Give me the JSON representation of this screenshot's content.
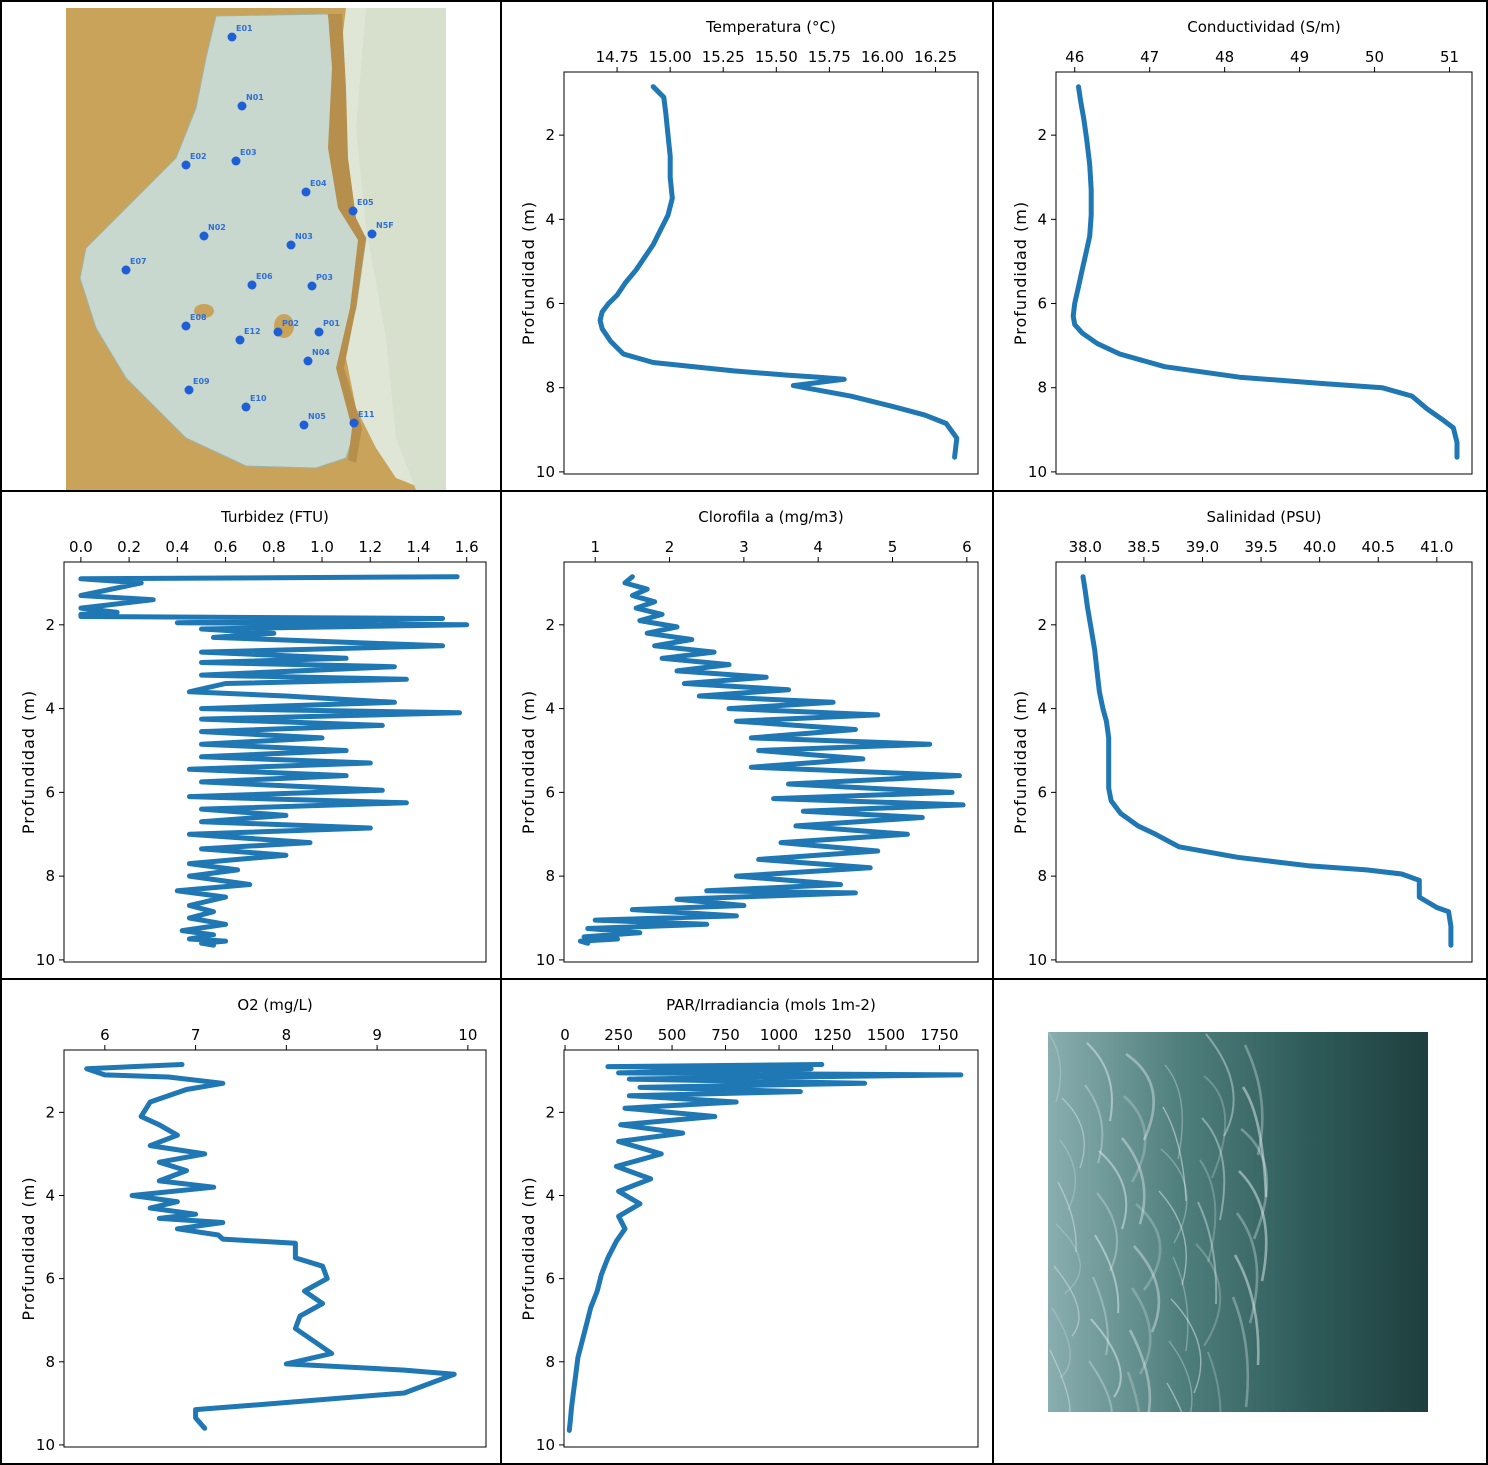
{
  "map_panel": {
    "stations": [
      "E01",
      "N01",
      "E02",
      "E03",
      "E04",
      "E05",
      "N5F",
      "N02",
      "N03",
      "E07",
      "E06",
      "P03",
      "E08",
      "E12",
      "P02",
      "P01",
      "N04",
      "E09",
      "E10",
      "N05",
      "E11"
    ]
  },
  "photo_panel": {},
  "colors": {
    "line": "#1f77b4",
    "station": "#1f5fd6",
    "land": "#c9a35a",
    "water": "#c9d8cf",
    "sea": "#dfe6d6"
  },
  "chart_data": [
    {
      "type": "line",
      "title": "Temperatura (°C)",
      "ylabel": "Profundidad (m)",
      "xlim": [
        14.5,
        16.45
      ],
      "xticks": [
        "14.75",
        "15.00",
        "15.25",
        "15.50",
        "15.75",
        "16.00",
        "16.25"
      ],
      "xtick_values": [
        14.75,
        15.0,
        15.25,
        15.5,
        15.75,
        16.0,
        16.25
      ],
      "ylim": [
        10.05,
        0.5
      ],
      "yticks": [
        "2",
        "4",
        "6",
        "8",
        "10"
      ],
      "ytick_values": [
        2,
        4,
        6,
        8,
        10
      ],
      "series": [
        {
          "x": [
            14.92,
            14.97,
            14.98,
            14.99,
            15.0,
            15.0,
            15.01,
            14.99,
            14.97,
            14.95,
            14.92,
            14.88,
            14.84,
            14.79,
            14.75,
            14.71,
            14.68,
            14.67,
            14.68,
            14.72,
            14.78,
            14.92,
            15.3,
            15.55,
            15.7,
            15.82,
            15.58,
            15.85,
            16.05,
            16.2,
            16.3,
            16.35,
            16.34
          ],
          "y": [
            0.85,
            1.1,
            1.5,
            2.0,
            2.5,
            3.0,
            3.5,
            3.9,
            4.1,
            4.3,
            4.6,
            4.9,
            5.2,
            5.5,
            5.8,
            6.0,
            6.2,
            6.4,
            6.6,
            6.9,
            7.2,
            7.4,
            7.6,
            7.7,
            7.75,
            7.8,
            7.95,
            8.2,
            8.45,
            8.65,
            8.85,
            9.2,
            9.65
          ]
        }
      ]
    },
    {
      "type": "line",
      "title": "Conductividad (S/m)",
      "ylabel": "Profundidad (m)",
      "xlim": [
        45.75,
        51.3
      ],
      "xticks": [
        "46",
        "47",
        "48",
        "49",
        "50",
        "51"
      ],
      "xtick_values": [
        46,
        47,
        48,
        49,
        50,
        51
      ],
      "ylim": [
        10.05,
        0.5
      ],
      "yticks": [
        "2",
        "4",
        "6",
        "8",
        "10"
      ],
      "ytick_values": [
        2,
        4,
        6,
        8,
        10
      ],
      "series": [
        {
          "x": [
            46.05,
            46.08,
            46.12,
            46.16,
            46.2,
            46.22,
            46.22,
            46.2,
            46.15,
            46.1,
            46.05,
            46.0,
            45.98,
            46.0,
            46.1,
            46.3,
            46.6,
            47.2,
            48.2,
            49.3,
            50.1,
            50.5,
            50.7,
            50.9,
            51.05,
            51.1,
            51.1
          ],
          "y": [
            0.85,
            1.2,
            1.6,
            2.1,
            2.7,
            3.3,
            3.9,
            4.4,
            4.8,
            5.2,
            5.6,
            6.0,
            6.3,
            6.5,
            6.7,
            6.95,
            7.2,
            7.5,
            7.75,
            7.9,
            8.0,
            8.2,
            8.5,
            8.75,
            8.95,
            9.3,
            9.65
          ]
        }
      ]
    },
    {
      "type": "line",
      "title": "Turbidez (FTU)",
      "ylabel": "Profundidad (m)",
      "xlim": [
        -0.07,
        1.68
      ],
      "xticks": [
        "0.0",
        "0.2",
        "0.4",
        "0.6",
        "0.8",
        "1.0",
        "1.2",
        "1.4",
        "1.6"
      ],
      "xtick_values": [
        0,
        0.2,
        0.4,
        0.6,
        0.8,
        1.0,
        1.2,
        1.4,
        1.6
      ],
      "ylim": [
        10.05,
        0.5
      ],
      "yticks": [
        "2",
        "4",
        "6",
        "8",
        "10"
      ],
      "ytick_values": [
        2,
        4,
        6,
        8,
        10
      ],
      "series": [
        {
          "x": [
            1.56,
            0.0,
            0.25,
            0.0,
            0.3,
            0.0,
            0.15,
            0.0,
            0.0,
            1.5,
            0.4,
            1.6,
            0.5,
            0.8,
            0.55,
            1.5,
            0.5,
            1.1,
            0.5,
            1.3,
            0.5,
            1.35,
            0.6,
            0.45,
            0.85,
            1.3,
            0.5,
            1.57,
            0.5,
            1.25,
            0.5,
            1.0,
            0.5,
            1.1,
            0.5,
            1.2,
            0.45,
            1.1,
            0.5,
            1.25,
            0.45,
            1.35,
            0.5,
            0.85,
            0.5,
            1.2,
            0.45,
            0.95,
            0.5,
            0.85,
            0.45,
            0.65,
            0.45,
            0.7,
            0.4,
            0.6,
            0.45,
            0.55,
            0.45,
            0.6,
            0.42,
            0.55,
            0.45,
            0.6,
            0.5,
            0.55
          ],
          "y": [
            0.85,
            0.9,
            1.0,
            1.3,
            1.4,
            1.6,
            1.7,
            1.75,
            1.8,
            1.85,
            1.95,
            2.0,
            2.1,
            2.2,
            2.3,
            2.5,
            2.65,
            2.8,
            2.9,
            3.0,
            3.2,
            3.3,
            3.4,
            3.6,
            3.7,
            3.85,
            4.0,
            4.1,
            4.25,
            4.4,
            4.55,
            4.7,
            4.85,
            5.0,
            5.15,
            5.3,
            5.45,
            5.6,
            5.75,
            5.95,
            6.1,
            6.25,
            6.4,
            6.55,
            6.7,
            6.85,
            7.0,
            7.2,
            7.35,
            7.5,
            7.7,
            7.85,
            8.0,
            8.2,
            8.35,
            8.5,
            8.7,
            8.85,
            9.0,
            9.15,
            9.3,
            9.4,
            9.5,
            9.55,
            9.6,
            9.65
          ]
        }
      ]
    },
    {
      "type": "line",
      "title": "Clorofila a (mg/m3)",
      "ylabel": "Profundidad (m)",
      "xlim": [
        0.58,
        6.15
      ],
      "xticks": [
        "1",
        "2",
        "3",
        "4",
        "5",
        "6"
      ],
      "xtick_values": [
        1,
        2,
        3,
        4,
        5,
        6
      ],
      "ylim": [
        10.05,
        0.5
      ],
      "yticks": [
        "2",
        "4",
        "6",
        "8",
        "10"
      ],
      "ytick_values": [
        2,
        4,
        6,
        8,
        10
      ],
      "series": [
        {
          "x": [
            1.5,
            1.4,
            1.7,
            1.5,
            1.8,
            1.55,
            1.9,
            1.6,
            2.1,
            1.7,
            2.3,
            1.8,
            2.6,
            1.9,
            2.8,
            2.1,
            3.3,
            2.2,
            3.6,
            2.4,
            4.2,
            2.8,
            4.8,
            2.9,
            4.5,
            3.1,
            5.5,
            3.2,
            4.6,
            3.1,
            5.9,
            3.6,
            5.8,
            3.4,
            5.95,
            3.8,
            5.4,
            3.7,
            5.2,
            3.5,
            4.8,
            3.2,
            4.7,
            2.9,
            4.3,
            2.5,
            4.5,
            2.1,
            3.0,
            1.5,
            2.9,
            1.0,
            2.5,
            0.9,
            1.6,
            0.85,
            1.3,
            0.8,
            0.9
          ],
          "y": [
            0.85,
            1.0,
            1.15,
            1.3,
            1.45,
            1.6,
            1.75,
            1.9,
            2.05,
            2.2,
            2.35,
            2.5,
            2.65,
            2.8,
            2.95,
            3.1,
            3.25,
            3.4,
            3.55,
            3.7,
            3.85,
            4.0,
            4.15,
            4.3,
            4.5,
            4.7,
            4.85,
            5.0,
            5.2,
            5.4,
            5.6,
            5.8,
            6.0,
            6.15,
            6.3,
            6.45,
            6.6,
            6.8,
            7.0,
            7.2,
            7.4,
            7.6,
            7.8,
            8.0,
            8.2,
            8.35,
            8.4,
            8.55,
            8.7,
            8.8,
            8.95,
            9.05,
            9.15,
            9.25,
            9.35,
            9.45,
            9.5,
            9.55,
            9.6
          ]
        }
      ]
    },
    {
      "type": "line",
      "title": "Salinidad (PSU)",
      "ylabel": "Profundidad (m)",
      "xlim": [
        37.75,
        41.3
      ],
      "xticks": [
        "38.0",
        "38.5",
        "39.0",
        "39.5",
        "40.0",
        "40.5",
        "41.0"
      ],
      "xtick_values": [
        38.0,
        38.5,
        39.0,
        39.5,
        40.0,
        40.5,
        41.0
      ],
      "ylim": [
        10.05,
        0.5
      ],
      "yticks": [
        "2",
        "4",
        "6",
        "8",
        "10"
      ],
      "ytick_values": [
        2,
        4,
        6,
        8,
        10
      ],
      "series": [
        {
          "x": [
            37.98,
            38.0,
            38.02,
            38.05,
            38.08,
            38.1,
            38.12,
            38.15,
            38.18,
            38.2,
            38.2,
            38.2,
            38.22,
            38.3,
            38.45,
            38.6,
            38.8,
            39.3,
            39.9,
            40.4,
            40.7,
            40.85,
            40.85,
            41.0,
            41.1,
            41.12,
            41.12
          ],
          "y": [
            0.85,
            1.2,
            1.6,
            2.1,
            2.6,
            3.1,
            3.6,
            4.0,
            4.3,
            4.7,
            5.3,
            5.9,
            6.2,
            6.5,
            6.8,
            7.0,
            7.3,
            7.55,
            7.75,
            7.85,
            7.95,
            8.1,
            8.5,
            8.75,
            8.85,
            9.2,
            9.65
          ]
        }
      ]
    },
    {
      "type": "line",
      "title": "O2 (mg/L)",
      "ylabel": "Profundidad (m)",
      "xlim": [
        5.55,
        10.2
      ],
      "xticks": [
        "6",
        "7",
        "8",
        "9",
        "10"
      ],
      "xtick_values": [
        6,
        7,
        8,
        9,
        10
      ],
      "ylim": [
        10.05,
        0.5
      ],
      "yticks": [
        "2",
        "4",
        "6",
        "8",
        "10"
      ],
      "ytick_values": [
        2,
        4,
        6,
        8,
        10
      ],
      "series": [
        {
          "x": [
            6.85,
            5.8,
            6.0,
            6.7,
            7.3,
            6.9,
            6.5,
            6.4,
            6.6,
            6.8,
            6.5,
            7.1,
            6.6,
            6.9,
            6.6,
            7.2,
            6.3,
            6.8,
            6.5,
            7.0,
            6.6,
            7.3,
            6.8,
            7.25,
            7.3,
            8.1,
            8.1,
            8.4,
            8.45,
            8.2,
            8.4,
            8.15,
            8.1,
            8.3,
            8.5,
            8.0,
            9.3,
            9.85,
            9.3,
            7.6,
            7.0,
            7.0,
            7.1
          ],
          "y": [
            0.85,
            0.95,
            1.1,
            1.15,
            1.3,
            1.45,
            1.75,
            2.1,
            2.3,
            2.55,
            2.8,
            3.0,
            3.2,
            3.4,
            3.65,
            3.8,
            4.0,
            4.15,
            4.3,
            4.45,
            4.55,
            4.65,
            4.8,
            4.95,
            5.05,
            5.15,
            5.5,
            5.7,
            6.0,
            6.3,
            6.6,
            6.9,
            7.2,
            7.5,
            7.8,
            8.05,
            8.2,
            8.3,
            8.75,
            9.05,
            9.15,
            9.35,
            9.6
          ]
        }
      ]
    },
    {
      "type": "line",
      "title": "PAR/Irradiancia (mols 1m-2)",
      "ylabel": "Profundidad (m)",
      "xlim": [
        -5,
        1930
      ],
      "xticks": [
        "0",
        "250",
        "500",
        "750",
        "1000",
        "1250",
        "1500",
        "1750"
      ],
      "xtick_values": [
        0,
        250,
        500,
        750,
        1000,
        1250,
        1500,
        1750
      ],
      "ylim": [
        10.05,
        0.5
      ],
      "yticks": [
        "2",
        "4",
        "6",
        "8",
        "10"
      ],
      "ytick_values": [
        2,
        4,
        6,
        8,
        10
      ],
      "series": [
        {
          "x": [
            1200,
            200,
            1150,
            250,
            1850,
            300,
            1400,
            350,
            1100,
            300,
            800,
            280,
            700,
            260,
            550,
            250,
            450,
            240,
            400,
            250,
            350,
            250,
            280,
            240,
            200,
            170,
            150,
            120,
            100,
            80,
            60,
            50,
            40,
            30,
            25,
            20
          ],
          "y": [
            0.85,
            0.9,
            0.95,
            1.05,
            1.1,
            1.2,
            1.3,
            1.4,
            1.5,
            1.6,
            1.75,
            1.9,
            2.1,
            2.3,
            2.5,
            2.7,
            3.0,
            3.3,
            3.6,
            3.9,
            4.2,
            4.5,
            4.8,
            5.1,
            5.5,
            5.9,
            6.3,
            6.7,
            7.1,
            7.5,
            7.9,
            8.3,
            8.7,
            9.1,
            9.4,
            9.65
          ]
        }
      ]
    }
  ]
}
